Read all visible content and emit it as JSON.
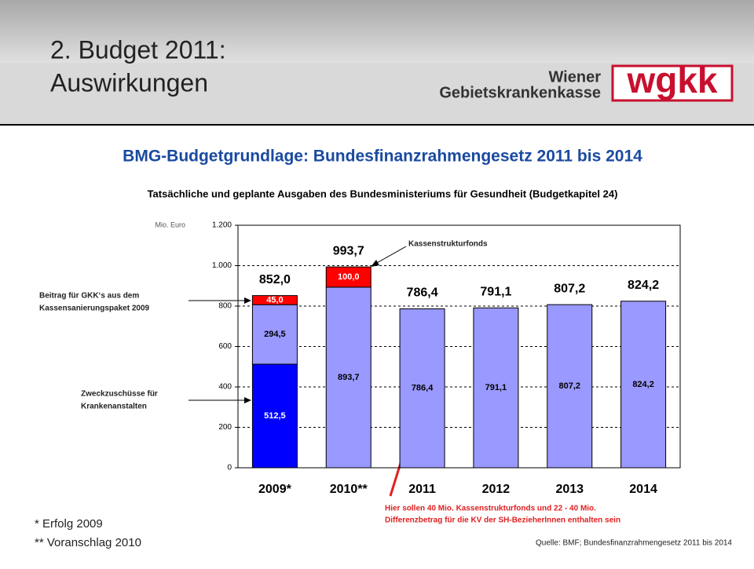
{
  "header": {
    "title_line1": "2. Budget 2011:",
    "title_line2": "Auswirkungen",
    "logo_text": "wgkk",
    "logo_line1": "Wiener",
    "logo_line2": "Gebietskrankenkasse"
  },
  "chart_data": {
    "type": "stacked_bar",
    "title": "BMG-Budgetgrundlage: Bundesfinanzrahmengesetz 2011 bis 2014",
    "subtitle": "Tatsächliche und geplante Ausgaben des Bundesministeriums für Gesundheit (Budgetkapitel 24)",
    "y_axis_label": "Mio. Euro",
    "categories": [
      "2009*",
      "2010**",
      "2011",
      "2012",
      "2013",
      "2014"
    ],
    "series": [
      {
        "color": "#0000ff",
        "values": [
          512.5,
          null,
          null,
          null,
          null,
          null
        ],
        "value_labels": [
          "512,5",
          null,
          null,
          null,
          null,
          null
        ]
      },
      {
        "color": "#9999ff",
        "values": [
          294.5,
          893.7,
          786.4,
          791.1,
          807.2,
          824.2
        ],
        "value_labels": [
          "294,5",
          "893,7",
          "786,4",
          "791,1",
          "807,2",
          "824,2"
        ]
      },
      {
        "color": "#ff0000",
        "values": [
          45.0,
          100.0,
          null,
          null,
          null,
          null
        ],
        "value_labels": [
          "45,0",
          "100,0",
          null,
          null,
          null,
          null
        ]
      }
    ],
    "totals": [
      852.0,
      993.7,
      786.4,
      791.1,
      807.2,
      824.2
    ],
    "total_labels": [
      "852,0",
      "993,7",
      "786,4",
      "791,1",
      "807,2",
      "824,2"
    ],
    "ylim": [
      0,
      1200
    ],
    "yticks": [
      0,
      200,
      400,
      600,
      800,
      {
        "value": 1000,
        "label": "1.000"
      },
      {
        "value": 1200,
        "label": "1.200"
      }
    ],
    "grid": true,
    "annotations": {
      "kassenstruktur": "Kassenstrukturfonds",
      "beitrag_line1": "Beitrag für GKK‘s aus dem",
      "beitrag_line2": "Kassensanierungspaket  2009",
      "zweck_line1": "Zweckzuschüsse  für",
      "zweck_line2": "Krankenanstalten",
      "note_line1": "Hier sollen 40 Mio. Kassenstrukturfonds  und 22 - 40 Mio.",
      "note_line2": "Differenzbetrag  für die KV der SH-BezieherInnen  enthalten sein"
    }
  },
  "footnotes": {
    "f1": "*  Erfolg 2009",
    "f2": "** Voranschlag 2010",
    "source": "Quelle:  BMF; Bundesfinanzrahmengesetz  2011 bis 2014"
  }
}
